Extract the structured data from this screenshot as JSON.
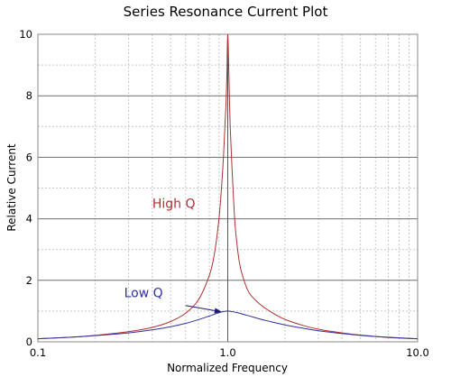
{
  "chart_data": {
    "type": "line",
    "title": "Series Resonance Current Plot",
    "xlabel": "Normalized Frequency",
    "ylabel": "Relative Current",
    "x_scale": "log",
    "xlim": [
      0.1,
      10.0
    ],
    "ylim": [
      0,
      10
    ],
    "x_ticks": [
      {
        "value": 0.1,
        "label": "0.1"
      },
      {
        "value": 1.0,
        "label": "1.0"
      },
      {
        "value": 10.0,
        "label": "10.0"
      }
    ],
    "y_ticks": [
      {
        "value": 0,
        "label": "0"
      },
      {
        "value": 2,
        "label": "2"
      },
      {
        "value": 4,
        "label": "4"
      },
      {
        "value": 6,
        "label": "6"
      },
      {
        "value": 8,
        "label": "8"
      },
      {
        "value": 10,
        "label": "10"
      }
    ],
    "grid": true,
    "series": [
      {
        "name": "High Q",
        "color": "#b03030",
        "x": [
          0.1,
          0.15,
          0.2,
          0.3,
          0.4,
          0.5,
          0.6,
          0.7,
          0.8,
          0.85,
          0.9,
          0.93,
          0.95,
          0.97,
          0.98,
          0.99,
          1.0,
          1.01,
          1.02,
          1.03,
          1.05,
          1.08,
          1.1,
          1.15,
          1.2,
          1.3,
          1.5,
          1.7,
          2.0,
          2.5,
          3.0,
          4.0,
          5.0,
          7.0,
          10.0
        ],
        "y": [
          0.1,
          0.15,
          0.21,
          0.33,
          0.47,
          0.66,
          0.93,
          1.36,
          2.16,
          2.85,
          4.03,
          5.14,
          6.06,
          7.24,
          7.8,
          8.7,
          10.0,
          9.1,
          8.0,
          7.0,
          5.8,
          4.3,
          3.6,
          2.6,
          2.12,
          1.58,
          1.19,
          0.96,
          0.73,
          0.53,
          0.41,
          0.29,
          0.22,
          0.14,
          0.1
        ]
      },
      {
        "name": "Low Q",
        "color": "#3030a0",
        "x": [
          0.1,
          0.15,
          0.2,
          0.3,
          0.4,
          0.5,
          0.6,
          0.7,
          0.8,
          0.9,
          1.0,
          1.1,
          1.25,
          1.5,
          1.7,
          2.0,
          2.5,
          3.0,
          4.0,
          5.0,
          7.0,
          10.0
        ],
        "y": [
          0.1,
          0.15,
          0.2,
          0.29,
          0.39,
          0.49,
          0.6,
          0.72,
          0.84,
          0.95,
          1.0,
          0.96,
          0.87,
          0.73,
          0.65,
          0.55,
          0.44,
          0.36,
          0.27,
          0.21,
          0.15,
          0.1
        ]
      }
    ],
    "annotations": [
      {
        "text": "High Q",
        "series": "High Q"
      },
      {
        "text": "Low Q",
        "series": "Low Q",
        "arrow_to": {
          "x": 0.92,
          "y": 0.98
        }
      }
    ]
  }
}
